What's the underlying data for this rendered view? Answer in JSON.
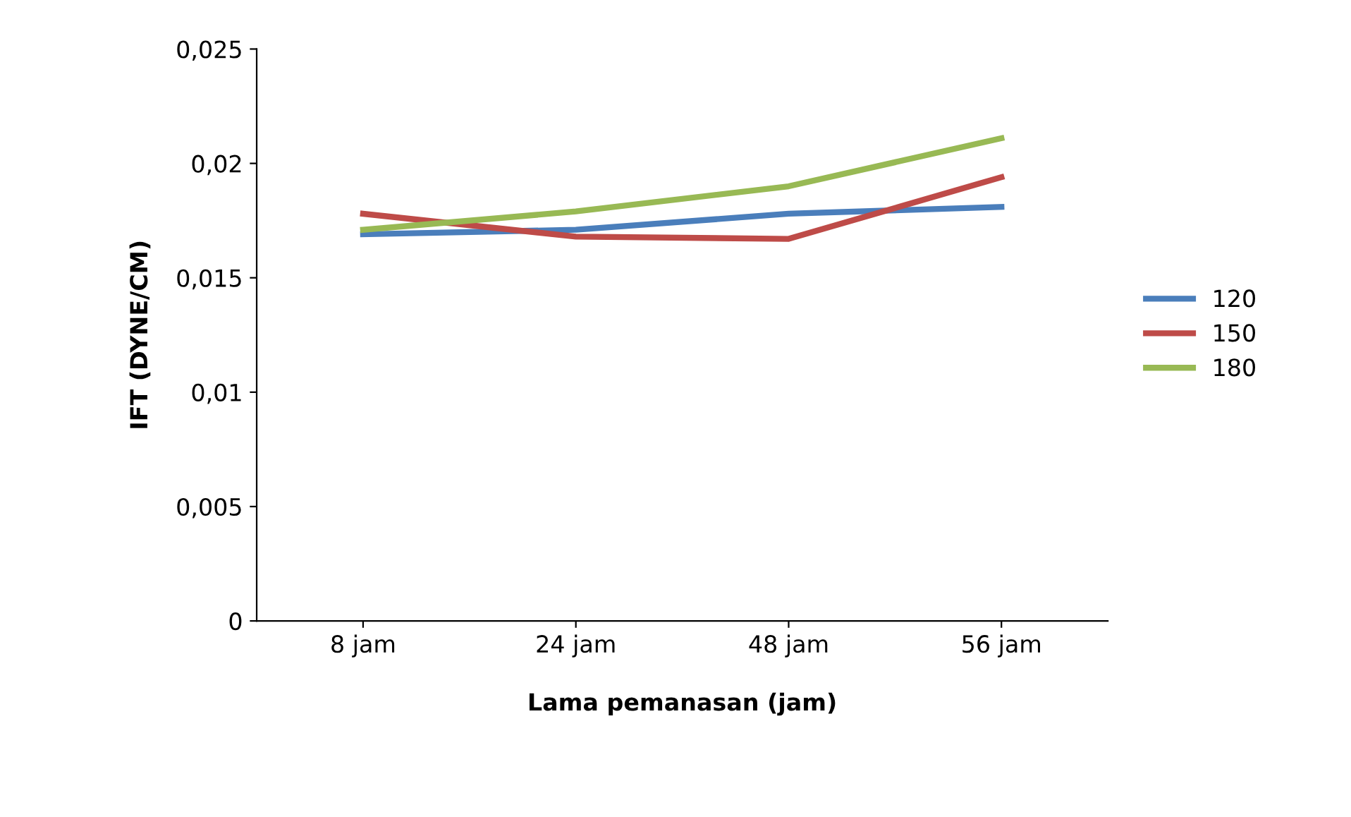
{
  "chart_data": {
    "type": "line",
    "xlabel": "Lama pemanasan (jam)",
    "ylabel": "IFT (DYNE/CM)",
    "categories": [
      "8 jam",
      "24 jam",
      "48 jam",
      "56 jam"
    ],
    "series": [
      {
        "name": "120",
        "color": "#4a7ebb",
        "values": [
          0.0169,
          0.0171,
          0.0178,
          0.0181
        ]
      },
      {
        "name": "150",
        "color": "#be4b48",
        "values": [
          0.0178,
          0.0168,
          0.0167,
          0.0194
        ]
      },
      {
        "name": "180",
        "color": "#98b954",
        "values": [
          0.0171,
          0.0179,
          0.019,
          0.0211
        ]
      }
    ],
    "ylim": [
      0,
      0.025
    ],
    "yticks": [
      {
        "value": 0,
        "label": "0"
      },
      {
        "value": 0.005,
        "label": "0,005"
      },
      {
        "value": 0.01,
        "label": "0,01"
      },
      {
        "value": 0.015,
        "label": "0,015"
      },
      {
        "value": 0.02,
        "label": "0,02"
      },
      {
        "value": 0.025,
        "label": "0,025"
      }
    ],
    "grid": false,
    "legend": "right",
    "marker": "none",
    "line_style": "solid"
  }
}
